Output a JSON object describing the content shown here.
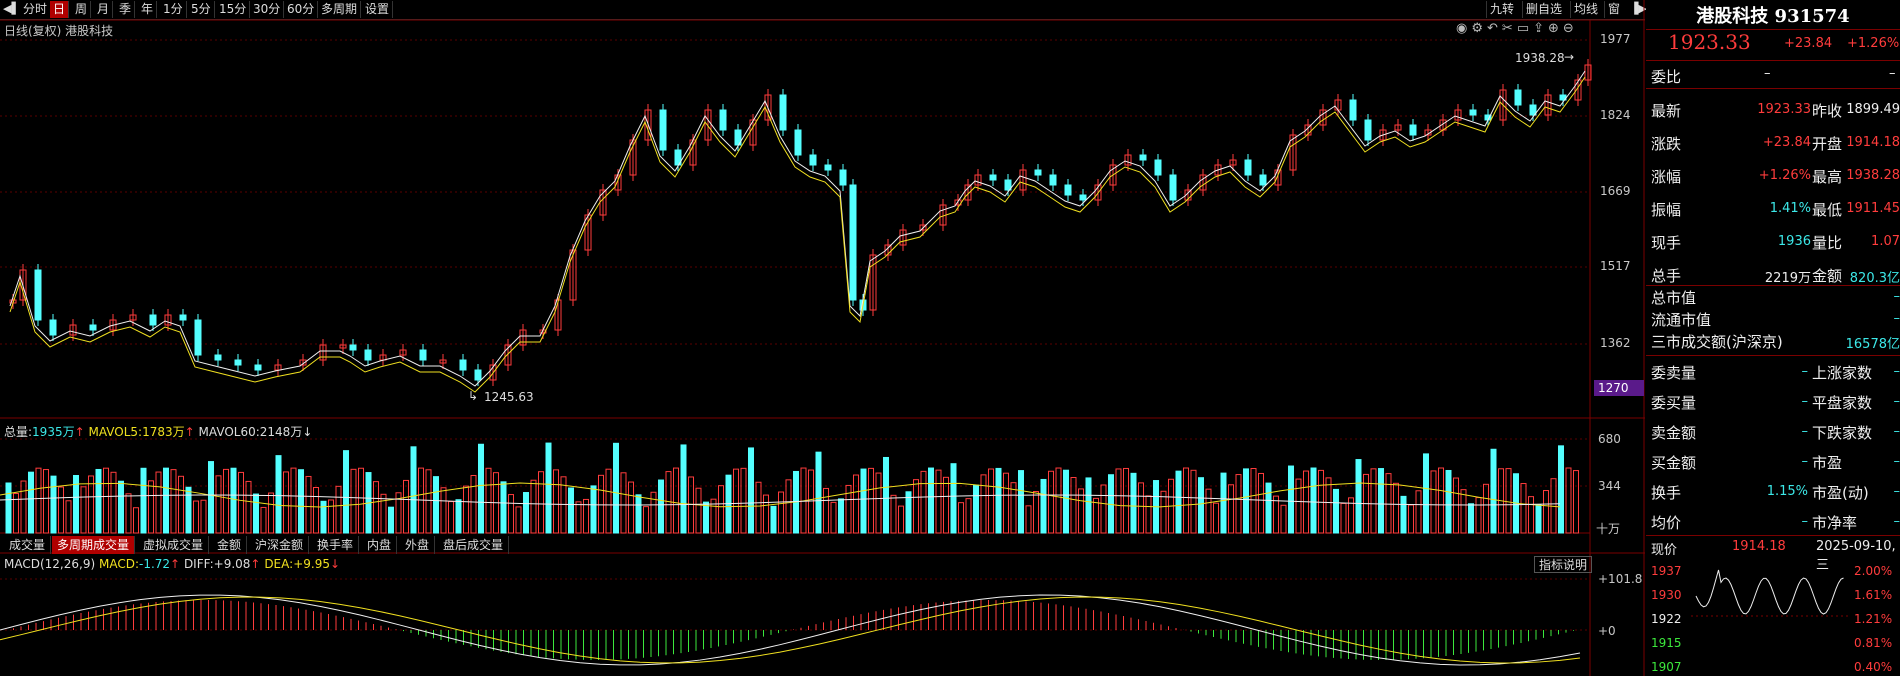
{
  "toolbar": {
    "items": [
      "分时",
      "日",
      "周",
      "月",
      "季",
      "年",
      "1分",
      "5分",
      "15分",
      "30分",
      "60分",
      "多周期",
      "设置"
    ],
    "active_index": 1,
    "right_items": [
      "九转",
      "删自选",
      "均线",
      "窗"
    ]
  },
  "chart": {
    "header": "日线(复权) 港股科技",
    "y_ticks": [
      "1977",
      "1824",
      "1669",
      "1517",
      "1362",
      "1270"
    ],
    "highlight_tick": "1270",
    "high_label": "1938.28",
    "low_label": "1245.63",
    "vol_header": {
      "total_label": "总量:",
      "total_value": "1935万",
      "total_arrow": "↑",
      "mavol5_label": "MAVOL5:",
      "mavol5_value": "1783万",
      "mavol5_arrow": "↑",
      "mavol60_label": "MAVOL60:",
      "mavol60_value": "2148万",
      "mavol60_arrow": "↓"
    },
    "vol_ticks": [
      "680",
      "344",
      "十万"
    ],
    "tabs": [
      "成交量",
      "多周期成交量",
      "虚拟成交量",
      "金额",
      "沪深金额",
      "换手率",
      "内盘",
      "外盘",
      "盘后成交量"
    ],
    "active_tab": 1,
    "macd_header": {
      "name": "MACD(12,26,9)",
      "macd_label": "MACD:",
      "macd_value": "-1.72",
      "macd_arrow": "↑",
      "diff_label": "DIFF:",
      "diff_value": "+9.08",
      "diff_arrow": "↑",
      "dea_label": "DEA:",
      "dea_value": "+9.95",
      "dea_arrow": "↓"
    },
    "macd_ticks": [
      "+101.8",
      "+0"
    ],
    "indicator_button": "指标说明",
    "colors": {
      "up": "#ff3c3c",
      "down": "#54ffff",
      "ma5": "#f0f0f0",
      "ma10": "#f0e020",
      "grid": "#7a0000"
    }
  },
  "quote": {
    "title": "港股科技 931574",
    "price": "1923.33",
    "change": "+23.84",
    "change_pct": "+1.26%",
    "weibi_label": "委比",
    "weibi_value": "–",
    "weibi_value2": "–",
    "rows": [
      {
        "l1": "最新",
        "v1": "1923.33",
        "c1": "red",
        "l2": "昨收",
        "v2": "1899.49",
        "c2": "white"
      },
      {
        "l1": "涨跌",
        "v1": "+23.84",
        "c1": "red",
        "l2": "开盘",
        "v2": "1914.18",
        "c2": "red"
      },
      {
        "l1": "涨幅",
        "v1": "+1.26%",
        "c1": "red",
        "l2": "最高",
        "v2": "1938.28",
        "c2": "red"
      },
      {
        "l1": "振幅",
        "v1": "1.41%",
        "c1": "cyan",
        "l2": "最低",
        "v2": "1911.45",
        "c2": "red"
      },
      {
        "l1": "现手",
        "v1": "1936",
        "c1": "cyan",
        "l2": "量比",
        "v2": "1.07",
        "c2": "red"
      },
      {
        "l1": "总手",
        "v1": "2219万",
        "c1": "white",
        "l2": "金额",
        "v2": "820.3亿",
        "c2": "cyan"
      }
    ],
    "market_rows": [
      {
        "label": "总市值",
        "value": "–"
      },
      {
        "label": "流通市值",
        "value": "–"
      },
      {
        "label": "三市成交额(沪深京)",
        "value": "16578亿"
      }
    ],
    "pair_rows": [
      {
        "l1": "委卖量",
        "v1": "–",
        "l2": "上涨家数",
        "v2": "–"
      },
      {
        "l1": "委买量",
        "v1": "–",
        "l2": "平盘家数",
        "v2": "–"
      },
      {
        "l1": "卖金额",
        "v1": "–",
        "l2": "下跌家数",
        "v2": "–"
      },
      {
        "l1": "买金额",
        "v1": "–",
        "l2": "市盈",
        "v2": "–"
      },
      {
        "l1": "换手",
        "v1": "1.15%",
        "l2": "市盈(动)",
        "v2": "–"
      },
      {
        "l1": "均价",
        "v1": "–",
        "l2": "市净率",
        "v2": "–"
      }
    ],
    "mini": {
      "label": "现价",
      "price": "1914.18",
      "date": "2025-09-10,三",
      "y_left": [
        "1937",
        "1930",
        "1922",
        "1915",
        "1907"
      ],
      "y_right": [
        "2.00%",
        "1.61%",
        "1.21%",
        "0.81%",
        "0.40%"
      ]
    }
  }
}
